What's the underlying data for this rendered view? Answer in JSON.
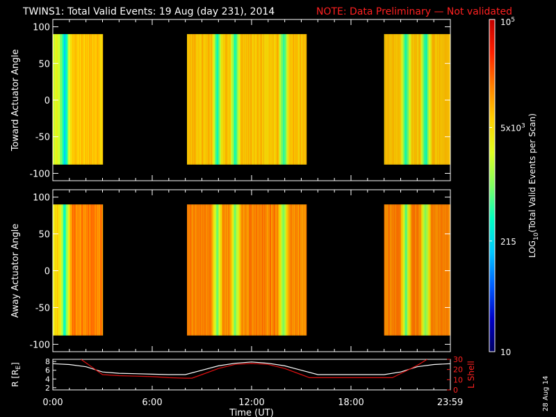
{
  "title": "TWINS1: Total Valid Events: 19 Aug (day 231), 2014",
  "note": "NOTE: Data Preliminary — Not validated",
  "stamp": "28 Aug 14",
  "colors": {
    "background": "#000000",
    "axes": "#ffffff",
    "note": "#ff2020",
    "r_line": "#ffffff",
    "lshell_line": "#e01010"
  },
  "colorbar": {
    "label": "LOG10(Total Valid Events per Scan)",
    "label_main": "LOG",
    "label_sub": "10",
    "label_rest": "(Total Valid Events per Scan)",
    "tick_labels": [
      {
        "text": "10",
        "value": 10
      },
      {
        "text": "215",
        "value": 215
      },
      {
        "text": "5x10",
        "sup": "3",
        "value": 5000
      },
      {
        "text": "10",
        "sup": "5",
        "value": 100000
      }
    ],
    "range": [
      10,
      100000
    ],
    "scale": "log",
    "colormap": [
      "#000060",
      "#0000c8",
      "#0060ff",
      "#00c8ff",
      "#00ffc0",
      "#80ff60",
      "#e0ff20",
      "#ffd000",
      "#ff8000",
      "#ff2000",
      "#c00000"
    ]
  },
  "chart_data": [
    {
      "type": "heatmap",
      "name": "toward",
      "ylabel": "Toward Actuator Angle",
      "ylim": [
        -110,
        110
      ],
      "yticks": [
        -100,
        -50,
        0,
        50,
        100
      ],
      "y_extent": [
        -88,
        90
      ],
      "xlim": [
        0,
        24
      ],
      "data_segments_hours": [
        [
          0.0,
          3.0
        ],
        [
          8.1,
          15.3
        ],
        [
          20.0,
          24.0
        ]
      ],
      "typical_level": "5x10^3",
      "dip_hours": [
        0.7,
        9.9,
        11.0,
        13.9,
        21.3,
        22.5
      ]
    },
    {
      "type": "heatmap",
      "name": "away",
      "ylabel": "Away Actuator Angle",
      "ylim": [
        -110,
        110
      ],
      "yticks": [
        -100,
        -50,
        0,
        50,
        100
      ],
      "y_extent": [
        -88,
        90
      ],
      "xlim": [
        0,
        24
      ],
      "data_segments_hours": [
        [
          0.0,
          3.0
        ],
        [
          8.1,
          15.3
        ],
        [
          20.0,
          24.0
        ]
      ],
      "typical_level": "1.5x10^4",
      "dip_hours": [
        0.7,
        9.9,
        11.0,
        13.9,
        21.3,
        22.5
      ]
    },
    {
      "type": "line",
      "name": "orbit",
      "ylabel_left": "R [RE]",
      "ylabel_left_main": "R [R",
      "ylabel_left_sub": "E",
      "ylabel_left_end": "]",
      "ylabel_right": "L Shell",
      "ylim_left": [
        1.5,
        8.5
      ],
      "ylim_right": [
        0,
        30
      ],
      "yticks_left": [
        2,
        4,
        6,
        8
      ],
      "yticks_right": [
        0,
        10,
        20,
        30
      ],
      "xlabel": "Time (UT)",
      "xticks": [
        {
          "label": "0:00",
          "hour": 0
        },
        {
          "label": "6:00",
          "hour": 6
        },
        {
          "label": "12:00",
          "hour": 12
        },
        {
          "label": "18:00",
          "hour": 18
        },
        {
          "label": "23:59",
          "hour": 23.983
        }
      ],
      "series": [
        {
          "name": "R",
          "axis": "left",
          "x": [
            0,
            1,
            2,
            3,
            4,
            5,
            6,
            7,
            8,
            9,
            10,
            11,
            12,
            13,
            14,
            15,
            16,
            17,
            18,
            19,
            20,
            21,
            22,
            23,
            24
          ],
          "y": [
            7.5,
            7.3,
            6.8,
            5.6,
            5.3,
            5.2,
            5.1,
            5.0,
            5.0,
            6.0,
            7.0,
            7.6,
            7.9,
            7.6,
            7.0,
            6.0,
            5.0,
            5.0,
            5.0,
            5.0,
            5.0,
            5.6,
            6.8,
            7.3,
            7.5
          ]
        },
        {
          "name": "L Shell",
          "axis": "right",
          "x": [
            1.7,
            3.0,
            4.0,
            5.0,
            6.0,
            7.0,
            8.0,
            8.4,
            9.0,
            10.0,
            11.0,
            12.0,
            13.0,
            14.0,
            15.0,
            15.5,
            16.0,
            17.0,
            18.0,
            19.0,
            20.0,
            20.5,
            21.0,
            22.0,
            22.6
          ],
          "y": [
            30,
            15,
            14,
            13.5,
            13,
            12,
            11.5,
            11.5,
            15,
            21,
            25,
            26,
            25,
            21,
            15,
            12,
            12,
            12,
            12,
            12,
            12,
            12,
            16,
            24,
            30
          ]
        }
      ]
    }
  ]
}
